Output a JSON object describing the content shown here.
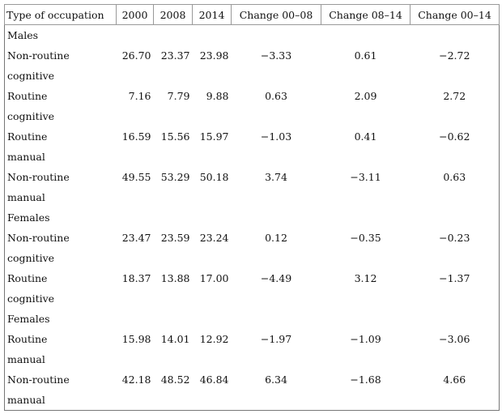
{
  "table": {
    "header": [
      "Type of occupation",
      "2000",
      "2008",
      "2014",
      "Change 00–08",
      "Change 08–14",
      "Change 00–14"
    ],
    "rows": [
      {
        "label": "Males"
      },
      {
        "label": "Non-routine cognitive",
        "values": [
          "26.70",
          "23.37",
          "23.98",
          "−3.33",
          "0.61",
          "−2.72"
        ]
      },
      {
        "label": "Routine cognitive",
        "values": [
          "7.16",
          "7.79",
          "9.88",
          "0.63",
          "2.09",
          "2.72"
        ]
      },
      {
        "label": "Routine manual",
        "values": [
          "16.59",
          "15.56",
          "15.97",
          "−1.03",
          "0.41",
          "−0.62"
        ]
      },
      {
        "label": "Non-routine manual",
        "values": [
          "49.55",
          "53.29",
          "50.18",
          "3.74",
          "−3.11",
          "0.63"
        ]
      },
      {
        "label": "Females"
      },
      {
        "label": "Non-routine cognitive",
        "values": [
          "23.47",
          "23.59",
          "23.24",
          "0.12",
          "−0.35",
          "−0.23"
        ]
      },
      {
        "label": "Routine cognitive",
        "values": [
          "18.37",
          "13.88",
          "17.00",
          "−4.49",
          "3.12",
          "−1.37"
        ]
      },
      {
        "label": "Females"
      },
      {
        "label": "Routine manual",
        "values": [
          "15.98",
          "14.01",
          "12.92",
          "−1.97",
          "−1.09",
          "−3.06"
        ]
      },
      {
        "label": "Non-routine manual",
        "values": [
          "42.18",
          "48.52",
          "46.84",
          "6.34",
          "−1.68",
          "4.66"
        ]
      }
    ]
  }
}
